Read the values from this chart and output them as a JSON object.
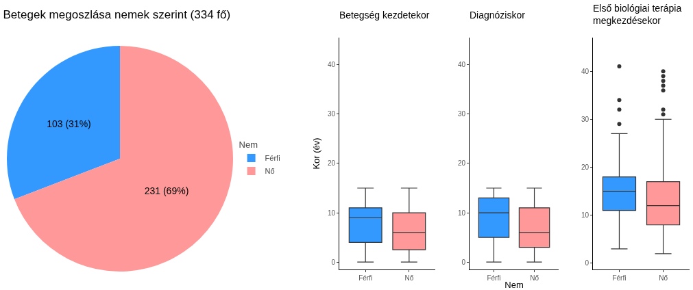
{
  "chart_data": [
    {
      "type": "pie",
      "title": "Betegek megoszlása nemek szerint (334 fő)",
      "categories": [
        "Férfi",
        "Nő"
      ],
      "values": [
        103,
        231
      ],
      "colors": [
        "#3399ff",
        "#ff9999"
      ],
      "value_labels": [
        "103 (31%)",
        "231 (69%)"
      ],
      "legend": "right",
      "legend_title": "Nem"
    },
    {
      "type": "box",
      "title": "Betegség kezdetekor",
      "ylabel": "Kor (év)",
      "categories": [
        "Férfi",
        "Nő"
      ],
      "colors": [
        "#3399ff",
        "#ff9999"
      ],
      "boxes": [
        {
          "low": 0,
          "q1": 4,
          "median": 9,
          "q3": 11,
          "high": 15
        },
        {
          "low": 0,
          "q1": 2.5,
          "median": 6,
          "q3": 10,
          "high": 15
        }
      ],
      "ylim": [
        -1.5,
        45.5
      ],
      "yticks": [
        0,
        10,
        20,
        30,
        40
      ],
      "grid": false
    },
    {
      "type": "box",
      "title": "Diagnóziskor",
      "xlabel": "Nem",
      "categories": [
        "Férfi",
        "Nő"
      ],
      "colors": [
        "#3399ff",
        "#ff9999"
      ],
      "boxes": [
        {
          "low": 0,
          "q1": 5,
          "median": 10,
          "q3": 13,
          "high": 15
        },
        {
          "low": 0,
          "q1": 3,
          "median": 6,
          "q3": 11,
          "high": 15
        }
      ],
      "ylim": [
        -1.5,
        45.5
      ],
      "yticks": [
        0,
        10,
        20,
        30,
        40
      ],
      "grid": false
    },
    {
      "type": "box",
      "title": "Első biológiai terápia\nmegkezdésekor",
      "categories": [
        "Férfi",
        "Nő"
      ],
      "colors": [
        "#3399ff",
        "#ff9999"
      ],
      "boxes": [
        {
          "low": 3,
          "q1": 11,
          "median": 15,
          "q3": 18,
          "high": 27,
          "outliers": [
            29,
            32,
            34,
            41
          ]
        },
        {
          "low": 2,
          "q1": 8,
          "median": 12,
          "q3": 17,
          "high": 30,
          "outliers": [
            31,
            32,
            36,
            37,
            38,
            39,
            40
          ]
        }
      ],
      "ylim": [
        -1.3,
        47
      ],
      "yticks": [
        0,
        10,
        20,
        30,
        40
      ],
      "grid": false
    }
  ]
}
